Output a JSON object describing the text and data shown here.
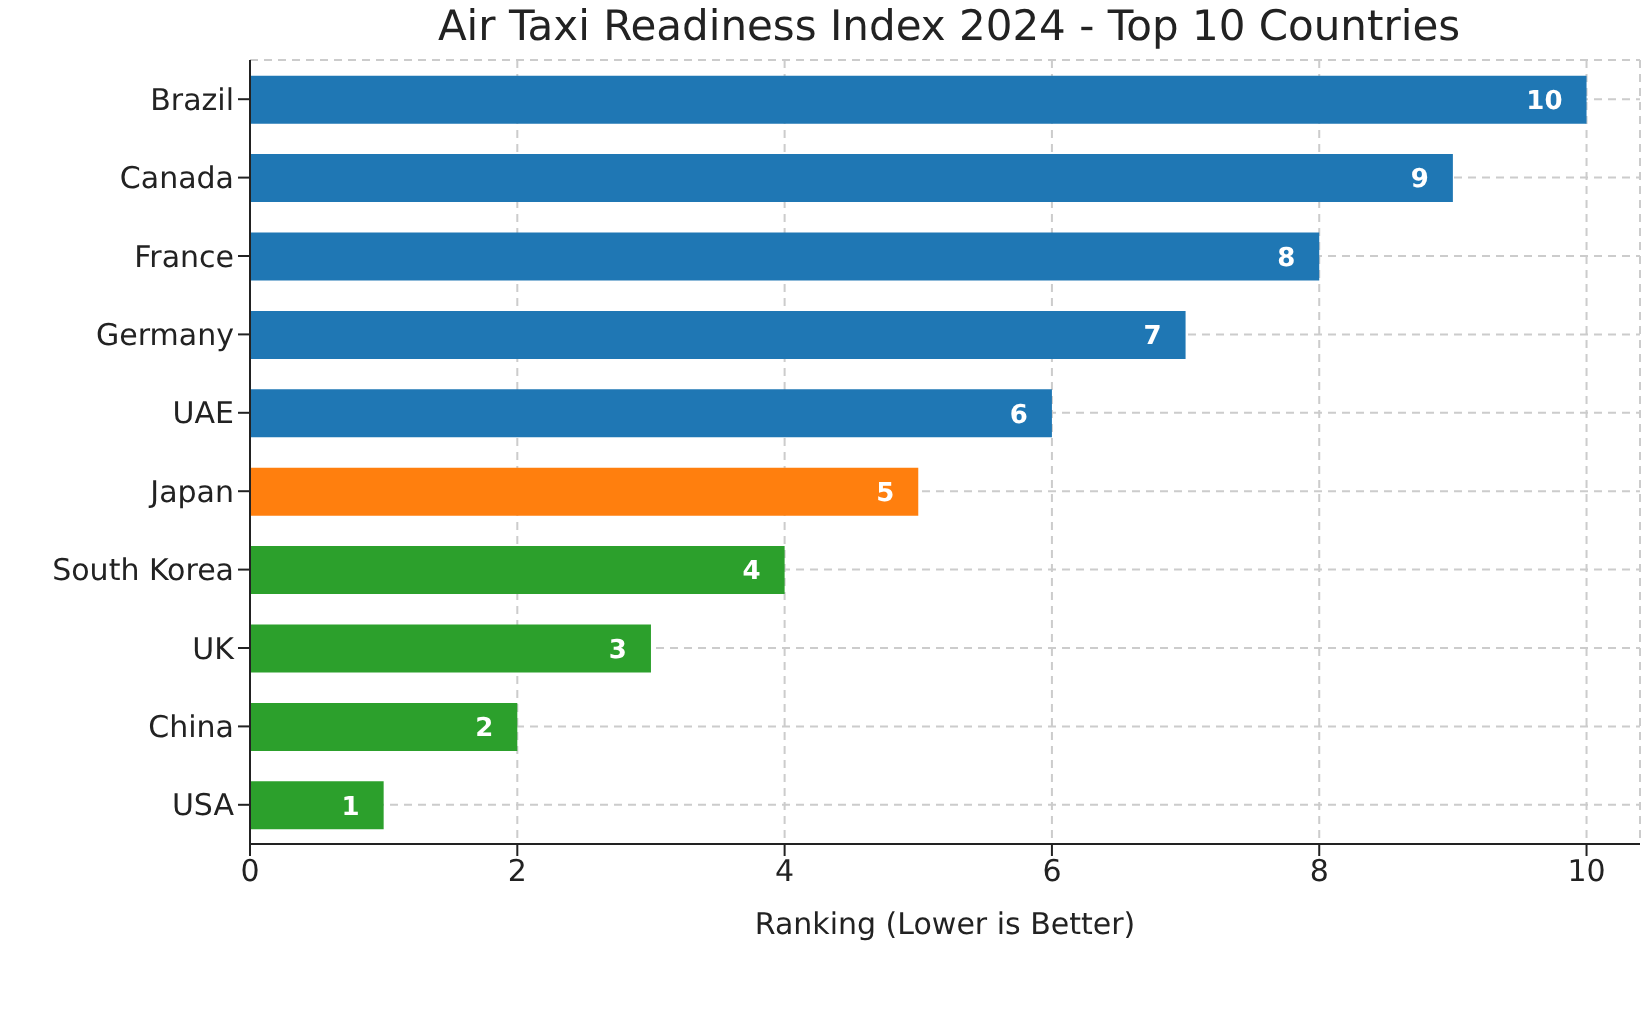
{
  "chart_data": {
    "type": "bar",
    "orientation": "horizontal",
    "title": "Air Taxi Readiness Index 2024 - Top 10 Countries",
    "xlabel": "Ranking (Lower is Better)",
    "categories": [
      "Brazil",
      "Canada",
      "France",
      "Germany",
      "UAE",
      "Japan",
      "South Korea",
      "UK",
      "China",
      "USA"
    ],
    "values": [
      10,
      9,
      8,
      7,
      6,
      5,
      4,
      3,
      2,
      1
    ],
    "colors": [
      "#1f77b4",
      "#1f77b4",
      "#1f77b4",
      "#1f77b4",
      "#1f77b4",
      "#ff7f0e",
      "#2ca02c",
      "#2ca02c",
      "#2ca02c",
      "#2ca02c"
    ],
    "xlim": [
      0,
      10.4
    ],
    "xticks": [
      0,
      2,
      4,
      6,
      8,
      10
    ],
    "grid": true,
    "data_labels": true
  }
}
